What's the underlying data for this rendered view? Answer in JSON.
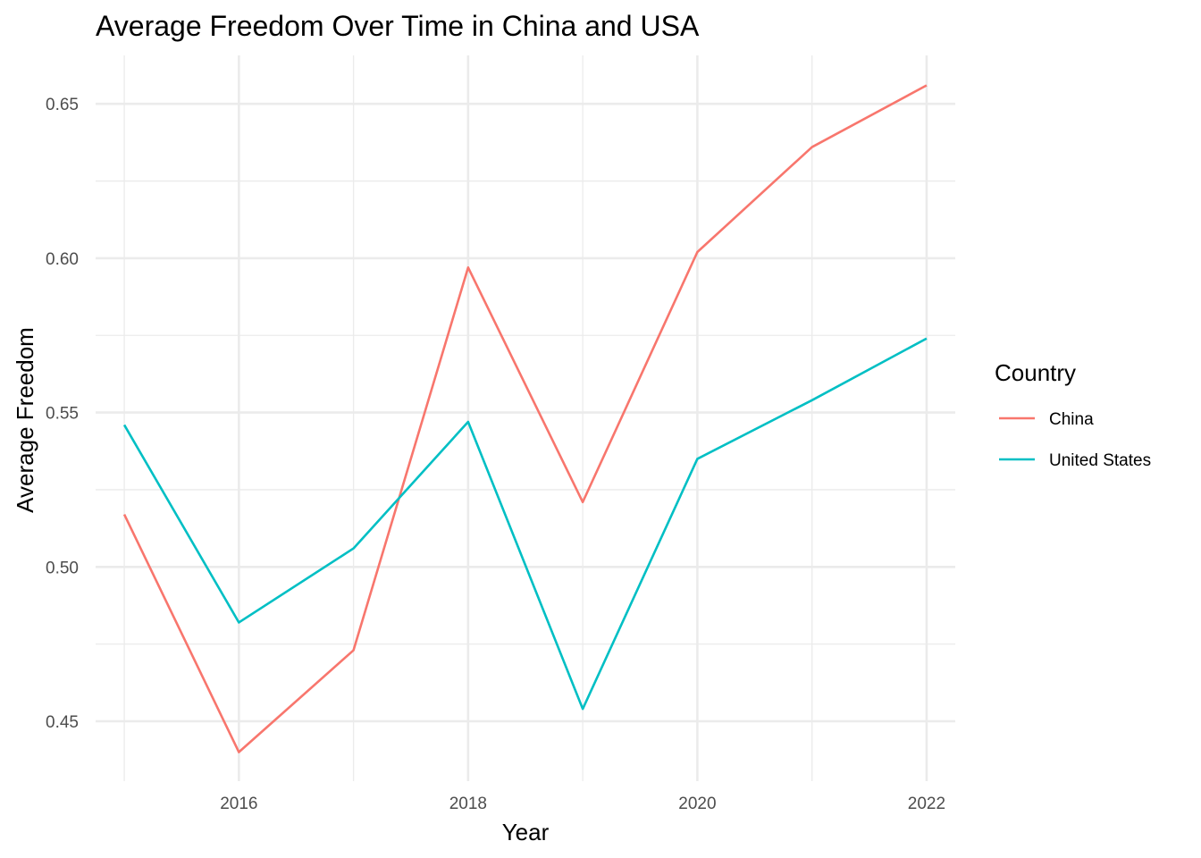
{
  "chart_data": {
    "type": "line",
    "title": "Average Freedom Over Time in China and USA",
    "xlabel": "Year",
    "ylabel": "Average Freedom",
    "x": [
      2015,
      2016,
      2017,
      2018,
      2019,
      2020,
      2021,
      2022
    ],
    "xlim": [
      2014.75,
      2022.25
    ],
    "ylim": [
      0.4306,
      0.6657
    ],
    "x_ticks": [
      2016,
      2018,
      2020,
      2022
    ],
    "x_tick_labels": [
      "2016",
      "2018",
      "2020",
      "2022"
    ],
    "x_minor_ticks": [
      2015,
      2017,
      2019,
      2021
    ],
    "y_ticks": [
      0.45,
      0.5,
      0.55,
      0.6,
      0.65
    ],
    "y_tick_labels": [
      "0.45",
      "0.50",
      "0.55",
      "0.60",
      "0.65"
    ],
    "y_minor_ticks": [
      0.475,
      0.525,
      0.575,
      0.625
    ],
    "grid": true,
    "legend": {
      "title": "Country",
      "position": "right"
    },
    "series": [
      {
        "name": "China",
        "color": "#F8766D",
        "values": [
          0.517,
          0.44,
          0.473,
          0.597,
          0.521,
          0.602,
          0.636,
          0.656
        ]
      },
      {
        "name": "United States",
        "color": "#00BFC4",
        "values": [
          0.546,
          0.482,
          0.506,
          0.547,
          0.454,
          0.535,
          0.554,
          0.574
        ]
      }
    ]
  }
}
